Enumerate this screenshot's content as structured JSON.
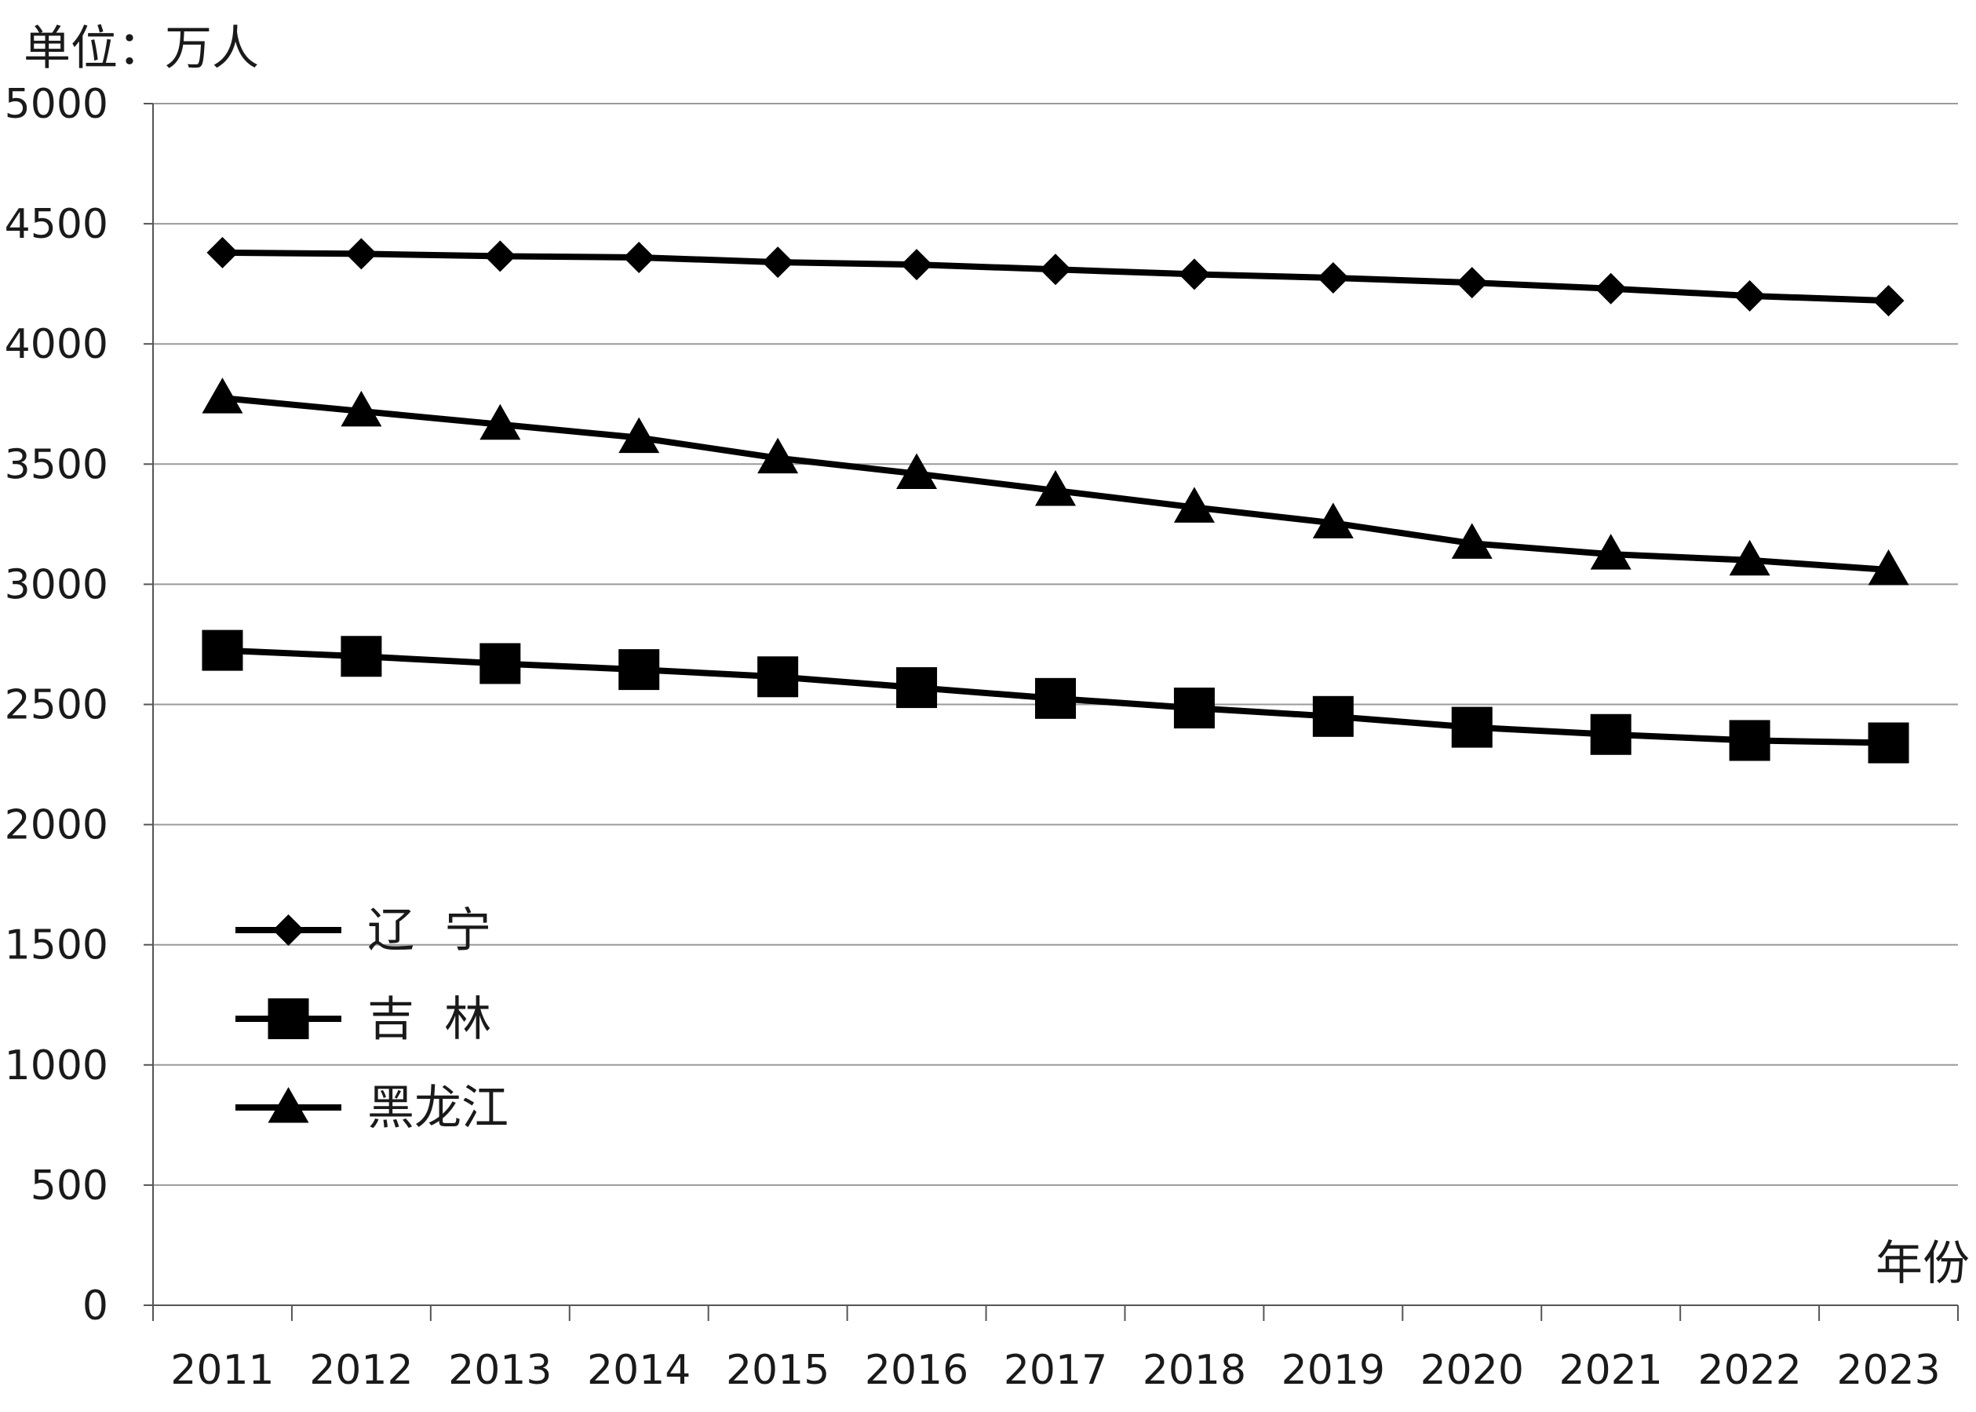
{
  "chart_data": {
    "type": "line",
    "unit_label": "单位：万人",
    "xlabel": "年份",
    "ylabel": "",
    "categories": [
      "2011",
      "2012",
      "2013",
      "2014",
      "2015",
      "2016",
      "2017",
      "2018",
      "2019",
      "2020",
      "2021",
      "2022",
      "2023"
    ],
    "ylim": [
      0,
      5000
    ],
    "yticks": [
      0,
      500,
      1000,
      1500,
      2000,
      2500,
      3000,
      3500,
      4000,
      4500,
      5000
    ],
    "grid": "horizontal",
    "legend_position": "lower-left",
    "series": [
      {
        "name": "辽  宁",
        "marker": "diamond",
        "values": [
          4380,
          4375,
          4365,
          4360,
          4340,
          4330,
          4310,
          4290,
          4275,
          4255,
          4230,
          4200,
          4180
        ]
      },
      {
        "name": "吉  林",
        "marker": "square",
        "values": [
          2725,
          2700,
          2670,
          2645,
          2615,
          2570,
          2525,
          2485,
          2450,
          2405,
          2375,
          2350,
          2340
        ]
      },
      {
        "name": "黑龙江",
        "marker": "triangle",
        "values": [
          3775,
          3720,
          3665,
          3610,
          3525,
          3460,
          3390,
          3320,
          3255,
          3170,
          3125,
          3100,
          3060
        ]
      }
    ],
    "colors": {
      "line": "#000000",
      "grid": "#9a9a9a",
      "axis": "#555555"
    }
  }
}
